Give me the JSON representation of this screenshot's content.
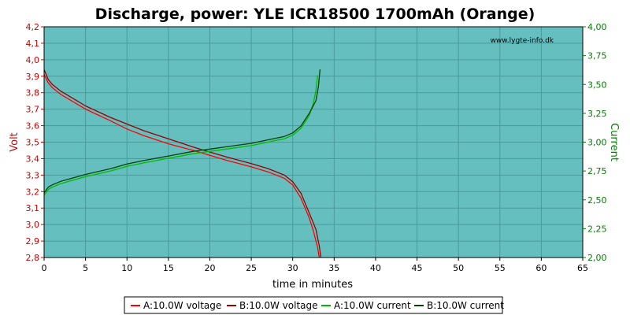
{
  "chart_data": {
    "type": "line",
    "title": "Discharge, power: YLE ICR18500 1700mAh (Orange)",
    "watermark": "www.lygte-info.dk",
    "xlabel": "time in minutes",
    "ylabel_left": "Volt",
    "ylabel_right": "Current",
    "xlim": [
      0,
      65
    ],
    "ylim_left": [
      2.8,
      4.2
    ],
    "ylim_right": [
      2.0,
      4.0
    ],
    "x_ticks": [
      "0",
      "5",
      "10",
      "15",
      "20",
      "25",
      "30",
      "35",
      "40",
      "45",
      "50",
      "55",
      "60",
      "65"
    ],
    "y_left_ticks": [
      "2,8",
      "2,9",
      "3,0",
      "3,1",
      "3,2",
      "3,3",
      "3,4",
      "3,5",
      "3,6",
      "3,7",
      "3,8",
      "3,9",
      "4,0",
      "4,1",
      "4,2"
    ],
    "y_right_ticks": [
      "2,00",
      "2,25",
      "2,50",
      "2,75",
      "3,00",
      "3,25",
      "3,50",
      "3,75",
      "4,00"
    ],
    "grid": true,
    "background": "#66bfbf",
    "colors": {
      "voltage": "#cc0000",
      "current": "#007700",
      "left_axis": "#cc0000",
      "right_axis": "#008000"
    },
    "legend_position": "bottom-center",
    "series": [
      {
        "name": "A:10.0W voltage",
        "axis": "left",
        "color": "#ff0000",
        "x": [
          0,
          0.5,
          1,
          2,
          3,
          5,
          8,
          10,
          12,
          15,
          18,
          20,
          22,
          25,
          27,
          29,
          30,
          31,
          32,
          32.5,
          33,
          33.2
        ],
        "y": [
          3.91,
          3.86,
          3.83,
          3.79,
          3.76,
          3.7,
          3.63,
          3.58,
          3.54,
          3.49,
          3.45,
          3.42,
          3.39,
          3.35,
          3.32,
          3.28,
          3.24,
          3.16,
          3.04,
          2.96,
          2.86,
          2.8
        ]
      },
      {
        "name": "B:10.0W voltage",
        "axis": "left",
        "color": "#990000",
        "x": [
          0,
          0.5,
          1,
          2,
          3,
          5,
          8,
          10,
          12,
          15,
          18,
          20,
          22,
          25,
          27,
          29,
          30,
          31,
          32,
          32.8,
          33.2,
          33.4
        ],
        "y": [
          3.94,
          3.88,
          3.85,
          3.81,
          3.78,
          3.72,
          3.65,
          3.61,
          3.57,
          3.52,
          3.47,
          3.44,
          3.41,
          3.37,
          3.34,
          3.3,
          3.26,
          3.19,
          3.07,
          2.97,
          2.87,
          2.8
        ]
      },
      {
        "name": "A:10.0W current",
        "axis": "right",
        "color": "#00bb00",
        "x": [
          0,
          0.5,
          1,
          2,
          3,
          5,
          8,
          10,
          12,
          15,
          18,
          20,
          22,
          25,
          27,
          29,
          30,
          31,
          32,
          32.5,
          32.8,
          33
        ],
        "y": [
          2.54,
          2.59,
          2.61,
          2.64,
          2.66,
          2.7,
          2.75,
          2.79,
          2.82,
          2.86,
          2.9,
          2.92,
          2.94,
          2.97,
          3.0,
          3.03,
          3.06,
          3.12,
          3.23,
          3.34,
          3.45,
          3.58
        ]
      },
      {
        "name": "B:10.0W current",
        "axis": "right",
        "color": "#004400",
        "x": [
          0,
          0.5,
          1,
          2,
          3,
          5,
          8,
          10,
          12,
          15,
          18,
          20,
          22,
          25,
          27,
          29,
          30,
          31,
          32,
          32.8,
          33.1,
          33.3
        ],
        "y": [
          2.56,
          2.61,
          2.63,
          2.66,
          2.68,
          2.72,
          2.77,
          2.81,
          2.84,
          2.88,
          2.92,
          2.94,
          2.96,
          2.99,
          3.02,
          3.05,
          3.08,
          3.14,
          3.25,
          3.36,
          3.48,
          3.63
        ]
      }
    ]
  }
}
